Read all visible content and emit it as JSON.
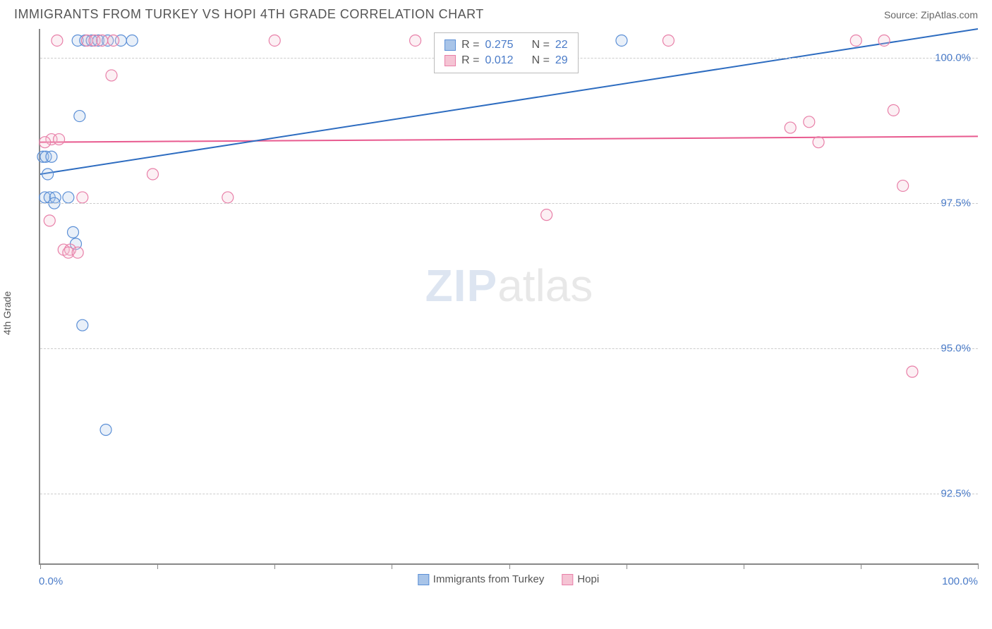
{
  "header": {
    "title": "IMMIGRANTS FROM TURKEY VS HOPI 4TH GRADE CORRELATION CHART",
    "source": "Source: ZipAtlas.com"
  },
  "y_axis_label": "4th Grade",
  "watermark": {
    "part1": "ZIP",
    "part2": "atlas"
  },
  "chart": {
    "type": "scatter",
    "background_color": "#ffffff",
    "grid_color": "#cccccc",
    "axis_color": "#888888",
    "xlim": [
      0,
      100
    ],
    "ylim": [
      91.3,
      100.5
    ],
    "x_ticks": [
      0,
      12.5,
      25,
      37.5,
      50,
      62.5,
      75,
      87.5,
      100
    ],
    "x_tick_labels": {
      "left": "0.0%",
      "right": "100.0%"
    },
    "y_gridlines": [
      92.5,
      95.0,
      97.5,
      100.0
    ],
    "y_tick_labels": [
      "92.5%",
      "95.0%",
      "97.5%",
      "100.0%"
    ],
    "marker_radius": 8,
    "marker_stroke_width": 1.2,
    "marker_fill_opacity": 0.25,
    "line_width": 2,
    "title_fontsize": 18,
    "label_fontsize": 14,
    "tick_fontsize": 15,
    "tick_label_color": "#4a7bc8"
  },
  "stats_box": {
    "rows": [
      {
        "swatch_fill": "#a8c4e8",
        "swatch_stroke": "#5b8fd6",
        "r_label": "R =",
        "r_value": "0.275",
        "n_label": "N =",
        "n_value": "22"
      },
      {
        "swatch_fill": "#f5c4d4",
        "swatch_stroke": "#e87fa8",
        "r_label": "R =",
        "r_value": "0.012",
        "n_label": "N =",
        "n_value": "29"
      }
    ]
  },
  "series": [
    {
      "name": "Immigrants from Turkey",
      "color_stroke": "#5b8fd6",
      "color_fill": "#a8c4e8",
      "line_color": "#2d6cc0",
      "regression": {
        "x1": 0,
        "y1": 98.0,
        "x2": 100,
        "y2": 100.5
      },
      "points": [
        {
          "x": 0.3,
          "y": 98.3
        },
        {
          "x": 0.6,
          "y": 98.3
        },
        {
          "x": 1.2,
          "y": 98.3
        },
        {
          "x": 0.5,
          "y": 97.6
        },
        {
          "x": 1.0,
          "y": 97.6
        },
        {
          "x": 1.6,
          "y": 97.6
        },
        {
          "x": 3.0,
          "y": 97.6
        },
        {
          "x": 3.5,
          "y": 97.0
        },
        {
          "x": 3.8,
          "y": 96.8
        },
        {
          "x": 4.2,
          "y": 99.0
        },
        {
          "x": 4.0,
          "y": 100.3
        },
        {
          "x": 4.8,
          "y": 100.3
        },
        {
          "x": 5.5,
          "y": 100.3
        },
        {
          "x": 6.2,
          "y": 100.3
        },
        {
          "x": 7.2,
          "y": 100.3
        },
        {
          "x": 8.6,
          "y": 100.3
        },
        {
          "x": 9.8,
          "y": 100.3
        },
        {
          "x": 62.0,
          "y": 100.3
        },
        {
          "x": 4.5,
          "y": 95.4
        },
        {
          "x": 7.0,
          "y": 93.6
        },
        {
          "x": 0.8,
          "y": 98.0
        },
        {
          "x": 1.5,
          "y": 97.5
        }
      ]
    },
    {
      "name": "Hopi",
      "color_stroke": "#e87fa8",
      "color_fill": "#f5c4d4",
      "line_color": "#e85a8f",
      "regression": {
        "x1": 0,
        "y1": 98.55,
        "x2": 100,
        "y2": 98.65
      },
      "points": [
        {
          "x": 1.0,
          "y": 97.2
        },
        {
          "x": 1.2,
          "y": 98.6
        },
        {
          "x": 2.0,
          "y": 98.6
        },
        {
          "x": 2.5,
          "y": 96.7
        },
        {
          "x": 3.2,
          "y": 96.7
        },
        {
          "x": 4.5,
          "y": 97.6
        },
        {
          "x": 5.0,
          "y": 100.3
        },
        {
          "x": 5.8,
          "y": 100.3
        },
        {
          "x": 6.6,
          "y": 100.3
        },
        {
          "x": 7.6,
          "y": 99.7
        },
        {
          "x": 7.8,
          "y": 100.3
        },
        {
          "x": 12.0,
          "y": 98.0
        },
        {
          "x": 20.0,
          "y": 97.6
        },
        {
          "x": 25.0,
          "y": 100.3
        },
        {
          "x": 40.0,
          "y": 100.3
        },
        {
          "x": 54.0,
          "y": 97.3
        },
        {
          "x": 67.0,
          "y": 100.3
        },
        {
          "x": 80.0,
          "y": 98.8
        },
        {
          "x": 82.0,
          "y": 98.9
        },
        {
          "x": 83.0,
          "y": 98.55
        },
        {
          "x": 87.0,
          "y": 100.3
        },
        {
          "x": 90.0,
          "y": 100.3
        },
        {
          "x": 91.0,
          "y": 99.1
        },
        {
          "x": 92.0,
          "y": 97.8
        },
        {
          "x": 93.0,
          "y": 94.6
        },
        {
          "x": 3.0,
          "y": 96.65
        },
        {
          "x": 4.0,
          "y": 96.65
        },
        {
          "x": 1.8,
          "y": 100.3
        },
        {
          "x": 0.5,
          "y": 98.55
        }
      ]
    }
  ],
  "bottom_legend": [
    {
      "swatch_fill": "#a8c4e8",
      "swatch_stroke": "#5b8fd6",
      "label": "Immigrants from Turkey"
    },
    {
      "swatch_fill": "#f5c4d4",
      "swatch_stroke": "#e87fa8",
      "label": "Hopi"
    }
  ]
}
